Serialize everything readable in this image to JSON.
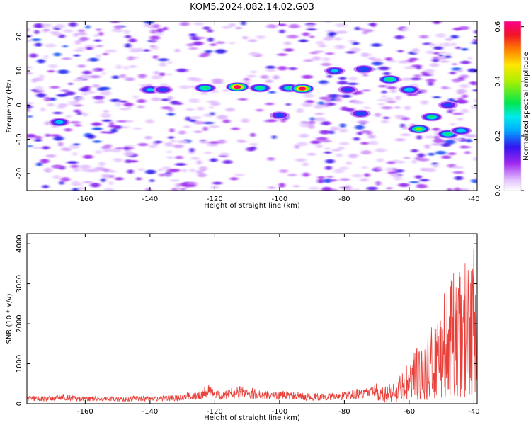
{
  "title": "KOM5.2024.082.14.02.G03",
  "chart_data": [
    {
      "type": "heatmap",
      "xlabel": "Height of straight line (km)",
      "ylabel": "Frequency (Hz)",
      "xlim": [
        -178,
        -39
      ],
      "ylim": [
        -25,
        24.5
      ],
      "xticks": [
        -160,
        -140,
        -120,
        -100,
        -80,
        -60,
        -40
      ],
      "yticks": [
        -20,
        -10,
        0,
        10,
        20
      ],
      "colorbar": {
        "label": "Normalized spectral amplitude",
        "range": [
          0,
          0.62
        ],
        "ticks": [
          0.0,
          0.2,
          0.4,
          0.6
        ],
        "tick_labels": [
          "0.0",
          "0.2",
          "0.4",
          "0.6"
        ]
      },
      "features": [
        {
          "height_km": -123,
          "freq_hz": 5,
          "amp": 0.33
        },
        {
          "height_km": -113,
          "freq_hz": 5.3,
          "amp": 0.6
        },
        {
          "height_km": -106,
          "freq_hz": 5,
          "amp": 0.32
        },
        {
          "height_km": -97,
          "freq_hz": 5,
          "amp": 0.3
        },
        {
          "height_km": -93,
          "freq_hz": 4.8,
          "amp": 0.6
        },
        {
          "height_km": -140,
          "freq_hz": 4.5,
          "amp": 0.24
        },
        {
          "height_km": -136,
          "freq_hz": 4.5,
          "amp": 0.2
        },
        {
          "height_km": -168,
          "freq_hz": -5,
          "amp": 0.25
        },
        {
          "height_km": -83,
          "freq_hz": 10,
          "amp": 0.24
        },
        {
          "height_km": -74,
          "freq_hz": 10.5,
          "amp": 0.23
        },
        {
          "height_km": -66,
          "freq_hz": 7.5,
          "amp": 0.35
        },
        {
          "height_km": -60,
          "freq_hz": 4.5,
          "amp": 0.28
        },
        {
          "height_km": -57,
          "freq_hz": -7,
          "amp": 0.38
        },
        {
          "height_km": -53,
          "freq_hz": -3.5,
          "amp": 0.3
        },
        {
          "height_km": -48,
          "freq_hz": -8.5,
          "amp": 0.32
        },
        {
          "height_km": -44,
          "freq_hz": -7.5,
          "amp": 0.28
        },
        {
          "height_km": -100,
          "freq_hz": -3,
          "amp": 0.2
        },
        {
          "height_km": -75,
          "freq_hz": -2.5,
          "amp": 0.22
        },
        {
          "height_km": -79,
          "freq_hz": 4.5,
          "amp": 0.2
        },
        {
          "height_km": -48,
          "freq_hz": 0,
          "amp": 0.2
        }
      ]
    },
    {
      "type": "line",
      "xlabel": "Height of straight line (km)",
      "ylabel": "SNR (10 * v/v)",
      "xlim": [
        -178,
        -39
      ],
      "ylim": [
        0,
        4250
      ],
      "xticks": [
        -160,
        -140,
        -120,
        -100,
        -80,
        -60,
        -40
      ],
      "yticks": [
        0,
        1000,
        2000,
        3000,
        4000
      ],
      "color": "#e8403a",
      "series": [
        {
          "x": [
            -178,
            -175,
            -172,
            -169,
            -166,
            -163,
            -160,
            -157,
            -154,
            -151,
            -148,
            -145,
            -142,
            -139,
            -136,
            -133,
            -130,
            -127,
            -124,
            -122,
            -120,
            -117,
            -114,
            -111,
            -108,
            -105,
            -102,
            -99,
            -96,
            -93,
            -90,
            -87,
            -84,
            -81,
            -78,
            -75,
            -72,
            -70,
            -68,
            -66,
            -64,
            -62,
            -60,
            -58,
            -56,
            -54,
            -52,
            -50,
            -48,
            -46,
            -44,
            -42,
            -41,
            -40,
            -39
          ],
          "y": [
            150,
            160,
            140,
            170,
            200,
            150,
            140,
            150,
            130,
            140,
            130,
            160,
            150,
            140,
            160,
            170,
            200,
            230,
            300,
            420,
            250,
            240,
            330,
            350,
            300,
            260,
            230,
            250,
            240,
            210,
            200,
            200,
            210,
            230,
            260,
            300,
            320,
            400,
            450,
            550,
            650,
            800,
            1100,
            1400,
            1600,
            1900,
            2300,
            2700,
            3100,
            3300,
            3400,
            3600,
            3700,
            4100,
            3200
          ]
        }
      ]
    }
  ]
}
